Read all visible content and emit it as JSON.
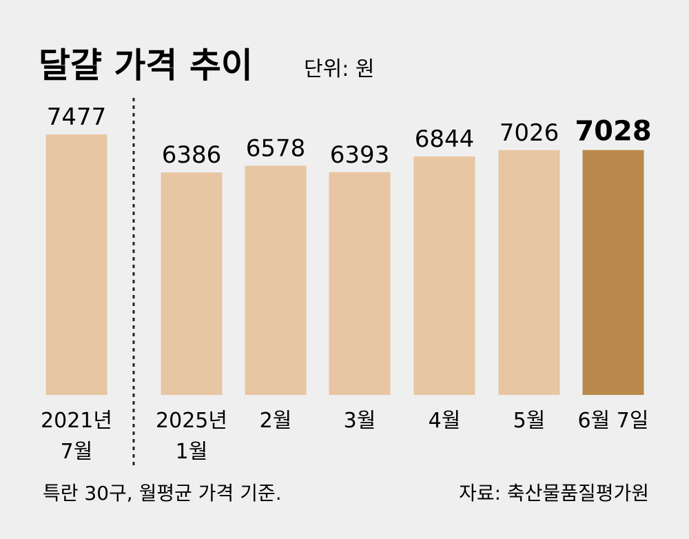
{
  "chart_data": {
    "type": "bar",
    "title": "달걀 가격 추이",
    "unit_label": "단위: 원",
    "categories": [
      [
        "2021년",
        "7월"
      ],
      [
        "2025년",
        "1월"
      ],
      [
        "2월"
      ],
      [
        "3월"
      ],
      [
        "4월"
      ],
      [
        "5월"
      ],
      [
        "6월 7일"
      ]
    ],
    "values": [
      7477,
      6386,
      6578,
      6393,
      6844,
      7026,
      7028
    ],
    "highlight_index": 6,
    "divider_after_index": 0,
    "colors": {
      "bar": "#e8c6a3",
      "highlight": "#b98a4b",
      "background": "#efefef"
    },
    "grid": false,
    "legend": "none"
  },
  "footnote": "특란 30구, 월평균 가격 기준.",
  "source": "자료: 축산물품질평가원"
}
